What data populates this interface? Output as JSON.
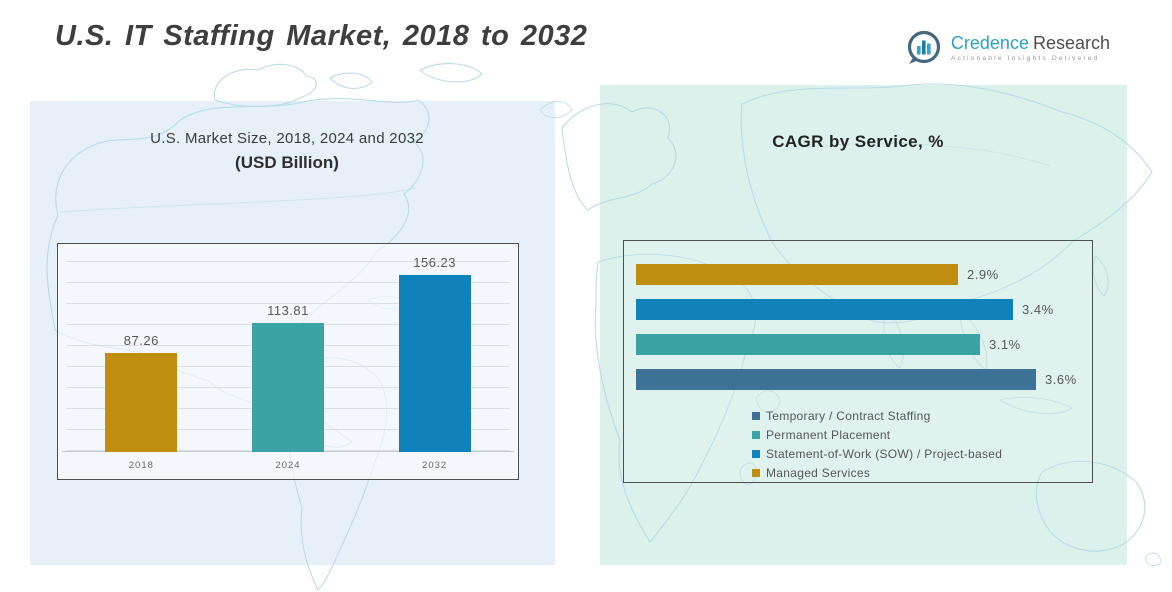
{
  "header": {
    "title": "U.S. IT Staffing Market, 2018 to 2032",
    "logo": {
      "brand_primary": "Credence",
      "brand_secondary": "Research",
      "tagline": "Actionable Insights Delivered",
      "brand_primary_color": "#2aa4c8",
      "brand_secondary_color": "#4d4d4d"
    }
  },
  "left_chart": {
    "title_line1": "U.S. Market Size, 2018, 2024 and 2032",
    "title_line2": "(USD Billion)"
  },
  "right_chart": {
    "title": "CAGR by Service, %"
  },
  "colors": {
    "gold": "#bf8e10",
    "teal": "#3ba3a3",
    "blue": "#0f82bb",
    "steel_blue": "#3c7296",
    "panel_left_bg": "#e7f0f8",
    "panel_right_bg": "#dcf1ec",
    "map_line": "#b4d8e6"
  },
  "chart_data": [
    {
      "type": "bar",
      "orientation": "vertical",
      "title": "U.S. Market Size, 2018, 2024 and 2032 (USD Billion)",
      "categories": [
        "2018",
        "2024",
        "2032"
      ],
      "values": [
        87.26,
        113.81,
        156.23
      ],
      "labels": [
        "87.26",
        "113.81",
        "156.23"
      ],
      "colors": [
        "#bf8e10",
        "#3ba3a3",
        "#0f82bb"
      ],
      "xlabel": "",
      "ylabel": "USD Billion",
      "ylim": [
        0,
        180
      ],
      "grid": true,
      "legend": false
    },
    {
      "type": "bar",
      "orientation": "horizontal",
      "title": "CAGR by Service, %",
      "categories": [
        "Managed Services",
        "Statement-of-Work (SOW) / Project-based",
        "Permanent Placement",
        "Temporary / Contract Staffing"
      ],
      "values": [
        2.9,
        3.4,
        3.1,
        3.6
      ],
      "labels": [
        "2.9%",
        "3.4%",
        "3.1%",
        "3.6%"
      ],
      "colors": [
        "#bf8e10",
        "#0f82bb",
        "#3ba3a3",
        "#3c7296"
      ],
      "xlim": [
        0,
        4
      ],
      "grid": false,
      "legend_position": "bottom",
      "legend": [
        {
          "label": "Temporary / Contract Staffing",
          "color": "#3c7296"
        },
        {
          "label": "Permanent Placement",
          "color": "#3ba3a3"
        },
        {
          "label": "Statement-of-Work (SOW) / Project-based",
          "color": "#0f82bb"
        },
        {
          "label": "Managed Services",
          "color": "#bf8e10"
        }
      ]
    }
  ]
}
